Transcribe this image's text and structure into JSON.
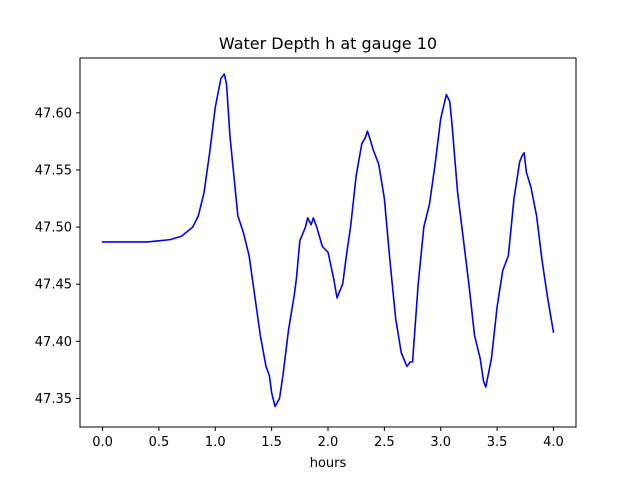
{
  "chart_data": {
    "type": "line",
    "title": "Water Depth h at gauge 10",
    "xlabel": "hours",
    "ylabel": "",
    "xlim": [
      -0.2,
      4.2
    ],
    "ylim": [
      47.325,
      47.648
    ],
    "grid": false,
    "xticks": [
      {
        "value": 0.0,
        "label": "0.0"
      },
      {
        "value": 0.5,
        "label": "0.5"
      },
      {
        "value": 1.0,
        "label": "1.0"
      },
      {
        "value": 1.5,
        "label": "1.5"
      },
      {
        "value": 2.0,
        "label": "2.0"
      },
      {
        "value": 2.5,
        "label": "2.5"
      },
      {
        "value": 3.0,
        "label": "3.0"
      },
      {
        "value": 3.5,
        "label": "3.5"
      },
      {
        "value": 4.0,
        "label": "4.0"
      }
    ],
    "yticks": [
      {
        "value": 47.35,
        "label": "47.35"
      },
      {
        "value": 47.4,
        "label": "47.40"
      },
      {
        "value": 47.45,
        "label": "47.45"
      },
      {
        "value": 47.5,
        "label": "47.50"
      },
      {
        "value": 47.55,
        "label": "47.55"
      },
      {
        "value": 47.6,
        "label": "47.60"
      }
    ],
    "series": [
      {
        "color": "#0000ff",
        "x": [
          0.0,
          0.1,
          0.2,
          0.3,
          0.4,
          0.5,
          0.6,
          0.7,
          0.8,
          0.85,
          0.9,
          0.95,
          1.0,
          1.05,
          1.08,
          1.1,
          1.13,
          1.17,
          1.2,
          1.25,
          1.3,
          1.35,
          1.4,
          1.45,
          1.48,
          1.5,
          1.53,
          1.57,
          1.6,
          1.65,
          1.7,
          1.72,
          1.75,
          1.8,
          1.82,
          1.85,
          1.87,
          1.9,
          1.95,
          2.0,
          2.05,
          2.08,
          2.1,
          2.13,
          2.17,
          2.2,
          2.25,
          2.3,
          2.33,
          2.35,
          2.37,
          2.4,
          2.45,
          2.5,
          2.55,
          2.6,
          2.65,
          2.7,
          2.73,
          2.75,
          2.8,
          2.85,
          2.9,
          2.95,
          3.0,
          3.05,
          3.08,
          3.1,
          3.15,
          3.2,
          3.25,
          3.3,
          3.35,
          3.38,
          3.4,
          3.45,
          3.5,
          3.55,
          3.6,
          3.65,
          3.7,
          3.72,
          3.74,
          3.76,
          3.8,
          3.85,
          3.9,
          3.95,
          4.0
        ],
        "y": [
          47.487,
          47.487,
          47.487,
          47.487,
          47.487,
          47.488,
          47.489,
          47.492,
          47.5,
          47.51,
          47.53,
          47.565,
          47.605,
          47.63,
          47.634,
          47.625,
          47.58,
          47.54,
          47.51,
          47.495,
          47.475,
          47.44,
          47.405,
          47.378,
          47.37,
          47.355,
          47.343,
          47.35,
          47.37,
          47.41,
          47.44,
          47.455,
          47.488,
          47.5,
          47.508,
          47.502,
          47.508,
          47.5,
          47.483,
          47.478,
          47.455,
          47.438,
          47.443,
          47.45,
          47.48,
          47.5,
          47.545,
          47.573,
          47.578,
          47.584,
          47.578,
          47.568,
          47.555,
          47.525,
          47.47,
          47.42,
          47.39,
          47.378,
          47.382,
          47.382,
          47.45,
          47.5,
          47.52,
          47.555,
          47.595,
          47.616,
          47.61,
          47.59,
          47.53,
          47.49,
          47.45,
          47.405,
          47.385,
          47.365,
          47.36,
          47.385,
          47.43,
          47.462,
          47.475,
          47.525,
          47.557,
          47.562,
          47.565,
          47.548,
          47.535,
          47.51,
          47.47,
          47.437,
          47.408
        ]
      }
    ]
  }
}
